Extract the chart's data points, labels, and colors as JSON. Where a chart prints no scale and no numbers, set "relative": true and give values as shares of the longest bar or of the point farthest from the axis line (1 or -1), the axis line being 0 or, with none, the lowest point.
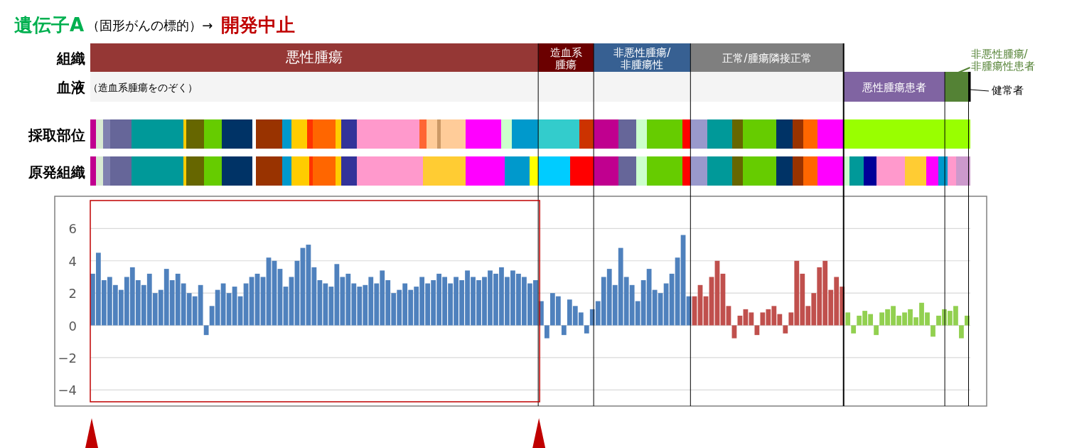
{
  "chart_data": [
    {
      "type": "bar",
      "title": "遺伝子A",
      "subtitle": "（固形がんの標的）→",
      "annotations": [
        "開発中止",
        "（造血系腫瘍をのぞく）"
      ],
      "orientation": "horizontal",
      "stacked": true,
      "relative": true,
      "categories": [
        "組織",
        "血液"
      ],
      "series": [
        {
          "name": "悪性腫瘍",
          "color": "#953735",
          "values": [
            0.509,
            null
          ]
        },
        {
          "name": "造血系腫瘍",
          "color": "#6b0000",
          "values": [
            0.063,
            null
          ]
        },
        {
          "name": "非悪性腫瘍/非腫瘍性",
          "color": "#376092",
          "values": [
            0.11,
            null
          ]
        },
        {
          "name": "正常/腫瘍隣接正常",
          "color": "#7f7f7f",
          "values": [
            0.174,
            null
          ]
        },
        {
          "color": "#f4f4f4",
          "values": [
            null,
            0.856
          ]
        },
        {
          "name": "悪性腫瘍患者",
          "color": "#8064a2",
          "values": [
            null,
            0.115
          ]
        },
        {
          "name": "非悪性腫瘍/非腫瘍性患者",
          "color": "#548235",
          "values": [
            null,
            0.027
          ]
        },
        {
          "name": "健常者",
          "color": "#000000",
          "values": [
            null,
            0.002
          ]
        }
      ]
    },
    {
      "type": "other",
      "categories": [
        "採取部位",
        "原発組織"
      ]
    },
    {
      "type": "bar",
      "ylim": [
        -5,
        8
      ],
      "yticks": [
        -4,
        -2,
        0,
        2,
        4,
        6
      ],
      "grid": "y",
      "tick_labels": "y",
      "categories": [
        null,
        null,
        null,
        null,
        null,
        null,
        null,
        null,
        null,
        null,
        null,
        null,
        null,
        null,
        null,
        null,
        null,
        null,
        null,
        null,
        null,
        null,
        null,
        null,
        null,
        null,
        null,
        null,
        null,
        null,
        null,
        null,
        null,
        null,
        null,
        null,
        null,
        null,
        null,
        null,
        null,
        null,
        null,
        null,
        null,
        null,
        null,
        null,
        null,
        null,
        null,
        null,
        null,
        null,
        null,
        null,
        null,
        null,
        null,
        null,
        null,
        null,
        null,
        null,
        null,
        null,
        null,
        null,
        null,
        null,
        null,
        null,
        null,
        null,
        null,
        null,
        null,
        null,
        null,
        null,
        null,
        null,
        null,
        null,
        null,
        null,
        null,
        null,
        null,
        null,
        null,
        null,
        null,
        null,
        null,
        null,
        null,
        null,
        null,
        null,
        null,
        null,
        null,
        null,
        null,
        null,
        null,
        null,
        null,
        null,
        null,
        null,
        null,
        null,
        null,
        null,
        null,
        null,
        null,
        null,
        null,
        null,
        null,
        null,
        null,
        null,
        null,
        null,
        null,
        null,
        null,
        null,
        null,
        null,
        null,
        null,
        null,
        null,
        null,
        null,
        null,
        null,
        null,
        null,
        null,
        null,
        null,
        null,
        null,
        null,
        null,
        null,
        null,
        null,
        null
      ],
      "values": [
        3.2,
        4.5,
        2.8,
        3.0,
        2.5,
        2.2,
        3.0,
        3.6,
        2.8,
        2.5,
        3.2,
        2.0,
        2.2,
        3.5,
        2.8,
        3.2,
        2.6,
        2.0,
        1.8,
        2.5,
        -0.6,
        1.2,
        2.2,
        2.6,
        2.0,
        2.4,
        1.8,
        2.6,
        3.0,
        3.2,
        3.0,
        4.2,
        4.0,
        3.5,
        2.4,
        3.0,
        4.0,
        4.8,
        5.0,
        3.6,
        2.8,
        2.6,
        2.4,
        3.8,
        3.0,
        3.2,
        2.6,
        2.4,
        2.5,
        3.0,
        2.6,
        3.4,
        2.8,
        2.0,
        2.2,
        2.6,
        2.2,
        2.4,
        3.0,
        2.6,
        2.8,
        3.2,
        3.0,
        2.6,
        3.0,
        2.8,
        3.4,
        3.0,
        2.8,
        3.0,
        3.4,
        3.2,
        3.6,
        3.0,
        3.4,
        3.2,
        3.0,
        2.6,
        2.8,
        1.5,
        -0.8,
        2.0,
        1.8,
        -0.6,
        1.6,
        1.2,
        0.8,
        -0.5,
        1.0,
        1.5,
        3.0,
        3.5,
        2.5,
        4.8,
        3.0,
        2.5,
        1.5,
        2.8,
        3.5,
        2.2,
        2.0,
        2.6,
        3.2,
        4.2,
        5.6,
        1.8,
        1.8,
        2.5,
        1.8,
        3.0,
        4.0,
        3.2,
        1.2,
        -0.8,
        0.6,
        1.0,
        0.8,
        -0.6,
        0.8,
        1.0,
        1.2,
        0.7,
        -0.5,
        0.8,
        4.0,
        3.2,
        1.2,
        2.0,
        3.6,
        4.0,
        2.2,
        3.0,
        2.4,
        0.8,
        -0.5,
        0.6,
        0.9,
        0.7,
        -0.6,
        0.8,
        1.0,
        1.2,
        0.6,
        0.8,
        1.0,
        0.5,
        1.4,
        0.8,
        -0.7,
        0.6,
        1.0,
        0.9,
        1.2,
        -0.8,
        0.6
      ],
      "colors": [
        "#4f81bd",
        "#4f81bd",
        "#4f81bd",
        "#4f81bd",
        "#4f81bd",
        "#4f81bd",
        "#4f81bd",
        "#4f81bd",
        "#4f81bd",
        "#4f81bd",
        "#4f81bd",
        "#4f81bd",
        "#4f81bd",
        "#4f81bd",
        "#4f81bd",
        "#4f81bd",
        "#4f81bd",
        "#4f81bd",
        "#4f81bd",
        "#4f81bd",
        "#4f81bd",
        "#4f81bd",
        "#4f81bd",
        "#4f81bd",
        "#4f81bd",
        "#4f81bd",
        "#4f81bd",
        "#4f81bd",
        "#4f81bd",
        "#4f81bd",
        "#4f81bd",
        "#4f81bd",
        "#4f81bd",
        "#4f81bd",
        "#4f81bd",
        "#4f81bd",
        "#4f81bd",
        "#4f81bd",
        "#4f81bd",
        "#4f81bd",
        "#4f81bd",
        "#4f81bd",
        "#4f81bd",
        "#4f81bd",
        "#4f81bd",
        "#4f81bd",
        "#4f81bd",
        "#4f81bd",
        "#4f81bd",
        "#4f81bd",
        "#4f81bd",
        "#4f81bd",
        "#4f81bd",
        "#4f81bd",
        "#4f81bd",
        "#4f81bd",
        "#4f81bd",
        "#4f81bd",
        "#4f81bd",
        "#4f81bd",
        "#4f81bd",
        "#4f81bd",
        "#4f81bd",
        "#4f81bd",
        "#4f81bd",
        "#4f81bd",
        "#4f81bd",
        "#4f81bd",
        "#4f81bd",
        "#4f81bd",
        "#4f81bd",
        "#4f81bd",
        "#4f81bd",
        "#4f81bd",
        "#4f81bd",
        "#4f81bd",
        "#4f81bd",
        "#4f81bd",
        "#4f81bd",
        "#4f81bd",
        "#4f81bd",
        "#4f81bd",
        "#4f81bd",
        "#4f81bd",
        "#4f81bd",
        "#4f81bd",
        "#4f81bd",
        "#4f81bd",
        "#4f81bd",
        "#4f81bd",
        "#4f81bd",
        "#4f81bd",
        "#4f81bd",
        "#4f81bd",
        "#4f81bd",
        "#4f81bd",
        "#4f81bd",
        "#4f81bd",
        "#4f81bd",
        "#4f81bd",
        "#4f81bd",
        "#4f81bd",
        "#4f81bd",
        "#4f81bd",
        "#4f81bd",
        "#4f81bd",
        "#c0504d",
        "#c0504d",
        "#c0504d",
        "#c0504d",
        "#c0504d",
        "#c0504d",
        "#c0504d",
        "#c0504d",
        "#c0504d",
        "#c0504d",
        "#c0504d",
        "#c0504d",
        "#c0504d",
        "#c0504d",
        "#c0504d",
        "#c0504d",
        "#c0504d",
        "#c0504d",
        "#c0504d",
        "#c0504d",
        "#c0504d",
        "#c0504d",
        "#c0504d",
        "#c0504d",
        "#c0504d",
        "#c0504d",
        "#c0504d",
        "#92d050",
        "#92d050",
        "#92d050",
        "#92d050",
        "#92d050",
        "#92d050",
        "#92d050",
        "#92d050",
        "#92d050",
        "#92d050",
        "#92d050",
        "#92d050",
        "#92d050",
        "#92d050",
        "#92d050",
        "#92d050",
        "#92d050",
        "#92d050",
        "#92d050",
        "#92d050",
        "#92d050",
        "#92d050"
      ]
    }
  ]
}
